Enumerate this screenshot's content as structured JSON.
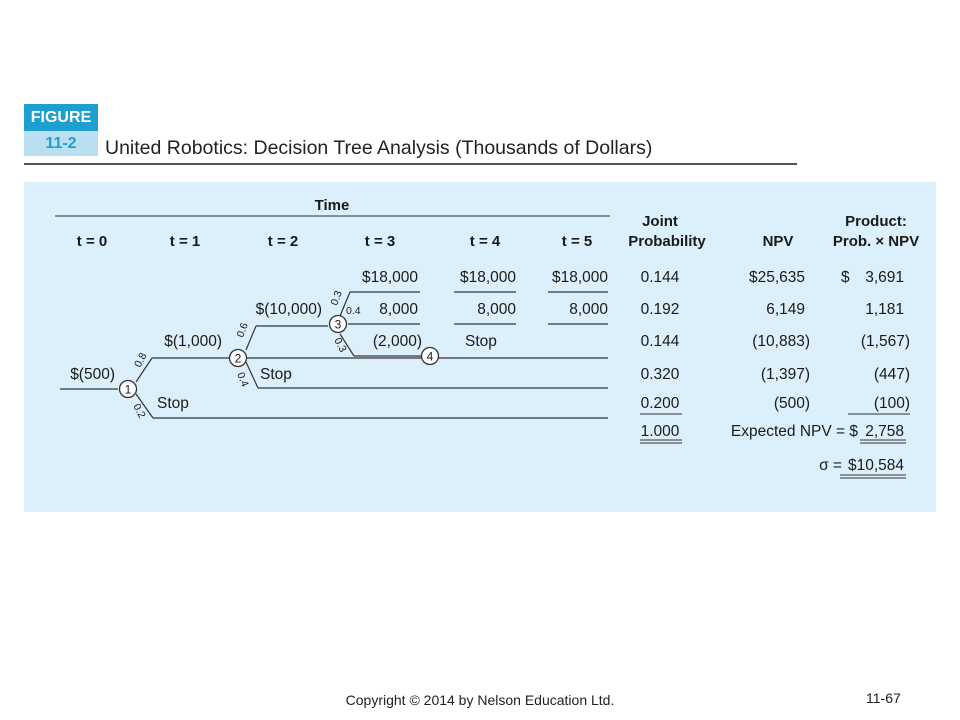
{
  "figure": {
    "label": "FIGURE",
    "number": "11-2",
    "title": "United Robotics: Decision Tree Analysis (Thousands of Dollars)"
  },
  "table": {
    "time_header": "Time",
    "time_cols": [
      "t = 0",
      "t = 1",
      "t = 2",
      "t = 3",
      "t = 4",
      "t = 5"
    ],
    "col_joint_1": "Joint",
    "col_joint_2": "Probability",
    "col_npv": "NPV",
    "col_product_1": "Product:",
    "col_product_2": "Prob. × NPV",
    "rows": [
      {
        "t3": "$18,000",
        "t4": "$18,000",
        "t5": "$18,000",
        "joint": "0.144",
        "npv": "$25,635",
        "product_sign": "$",
        "product": "3,691"
      },
      {
        "t2": "$(10,000)",
        "t3": "8,000",
        "t4": "8,000",
        "t5": "8,000",
        "joint": "0.192",
        "npv": "6,149",
        "product": "1,181"
      },
      {
        "t1": "$(1,000)",
        "t3": "(2,000)",
        "t4": "Stop",
        "joint": "0.144",
        "npv": "(10,883)",
        "product": "(1,567)"
      },
      {
        "t0": "$(500)",
        "t2": "Stop",
        "joint": "0.320",
        "npv": "(1,397)",
        "product": "(447)"
      },
      {
        "t1": "Stop",
        "joint": "0.200",
        "npv": "(500)",
        "product": "(100)"
      }
    ],
    "joint_total": "1.000",
    "expected_label": "Expected NPV = $",
    "expected_value": "2,758",
    "sigma_label": "σ = ",
    "sigma_value": "$10,584"
  },
  "tree": {
    "nodes": [
      "1",
      "2",
      "3",
      "4"
    ],
    "probs": {
      "n1_up": "0.8",
      "n1_down": "0.2",
      "n2_up": "0.6",
      "n2_down": "0.4",
      "n3_up": "0.3",
      "n3_mid": "0.4",
      "n3_down": "0.3"
    }
  },
  "footer": {
    "copyright": "Copyright © 2014 by Nelson Education Ltd.",
    "page": "11-67"
  }
}
